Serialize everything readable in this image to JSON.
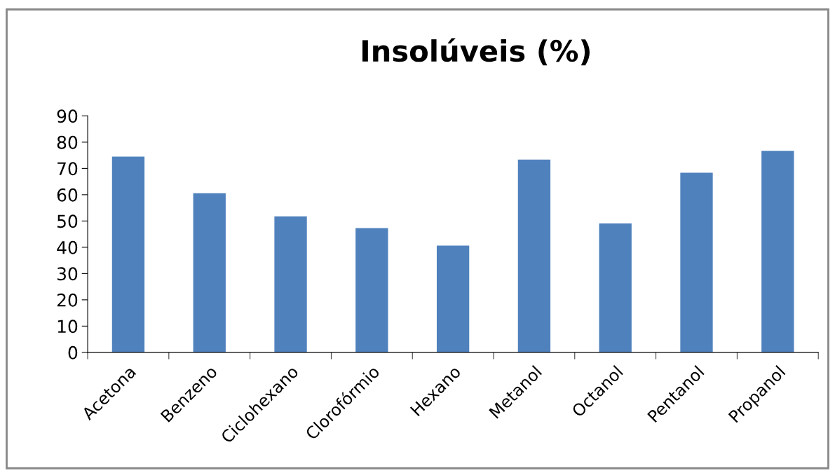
{
  "chart_data": {
    "type": "bar",
    "title": "Insolúveis (%)",
    "categories": [
      "Acetona",
      "Benzeno",
      "Ciclohexano",
      "Clorofórmio",
      "Hexano",
      "Metanol",
      "Octanol",
      "Pentanol",
      "Propanol"
    ],
    "values": [
      74.5,
      60.6,
      51.8,
      47.3,
      40.6,
      73.4,
      49.1,
      68.4,
      76.7
    ],
    "color": "#4f81bd",
    "ylim": [
      0,
      90
    ],
    "yticks": [
      0,
      10,
      20,
      30,
      40,
      50,
      60,
      70,
      80,
      90
    ],
    "grid": false,
    "legend": false
  }
}
